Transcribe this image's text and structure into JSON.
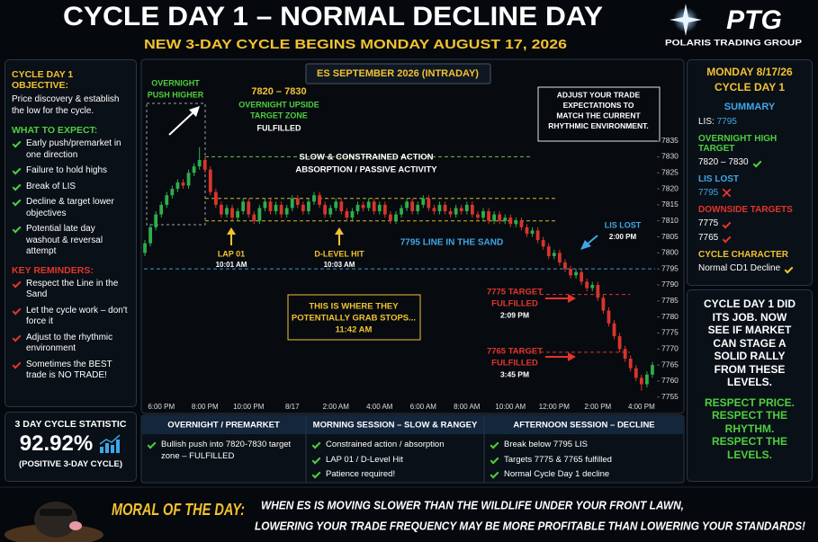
{
  "header": {
    "title": "CYCLE DAY 1 – NORMAL DECLINE DAY",
    "subtitle": "NEW 3-DAY CYCLE BEGINS MONDAY AUGUST 17, 2026",
    "logo": "PTG",
    "logo_sub": "POLARIS TRADING GROUP"
  },
  "left_panel": {
    "objective_heading": "CYCLE DAY 1 OBJECTIVE:",
    "objective_text": "Price discovery & establish the low for the cycle.",
    "expect_heading": "WHAT TO EXPECT:",
    "expect_items": [
      "Early push/premarket in one direction",
      "Failure to hold highs",
      "Break of LIS",
      "Decline & target lower objectives",
      "Potential late day washout & reversal attempt"
    ],
    "reminders_heading": "KEY REMINDERS:",
    "reminder_items": [
      "Respect the Line in the Sand",
      "Let the cycle work – don't force it",
      "Adjust to the rhythmic environment",
      "Sometimes the BEST trade is NO TRADE!"
    ]
  },
  "stat": {
    "heading": "3 DAY CYCLE STATISTIC",
    "value": "92.92%",
    "note": "(POSITIVE 3-DAY CYCLE)"
  },
  "right_panel": {
    "date": "MONDAY 8/17/26",
    "day": "CYCLE DAY 1",
    "summary_heading": "SUMMARY",
    "lis_label": "LIS:",
    "lis_value": 7795,
    "high_target_heading": "OVERNIGHT HIGH TARGET",
    "high_target_value": "7820 – 7830",
    "lis_lost_heading": "LIS LOST",
    "lis_lost_value": 7795,
    "downside_heading": "DOWNSIDE TARGETS",
    "downside_targets": [
      7775,
      7765
    ],
    "character_heading": "CYCLE CHARACTER",
    "character_value": "Normal CD1 Decline"
  },
  "right_box": {
    "lines": [
      "CYCLE DAY 1 DID",
      "ITS JOB. NOW",
      "SEE IF MARKET",
      "CAN STAGE A",
      "SOLID RALLY",
      "FROM THESE",
      "LEVELS."
    ],
    "respect": [
      "RESPECT PRICE.",
      "RESPECT THE",
      "RHYTHM.",
      "RESPECT THE",
      "LEVELS."
    ]
  },
  "sessions": [
    {
      "heading": "OVERNIGHT / PREMARKET",
      "items": [
        "Bullish push into 7820-7830 target zone – FULFILLED"
      ]
    },
    {
      "heading": "MORNING SESSION – SLOW & RANGEY",
      "items": [
        "Constrained action / absorption",
        "LAP 01 / D-Level Hit",
        "Patience required!"
      ]
    },
    {
      "heading": "AFTERNOON SESSION – DECLINE",
      "items": [
        "Break below 7795 LIS",
        "Targets 7775 & 7765 fulfilled",
        "Normal Cycle Day 1 decline"
      ]
    }
  ],
  "moral": {
    "label": "MORAL OF THE DAY:",
    "lines": [
      "WHEN ES IS MOVING SLOWER THAN THE WILDLIFE UNDER YOUR FRONT LAWN,",
      "LOWERING YOUR TRADE FREQUENCY MAY BE MORE PROFITABLE THAN LOWERING YOUR STANDARDS!"
    ]
  },
  "chart_data": {
    "type": "candlestick",
    "title": "ES SEPTEMBER 2026 (INTRADAY)",
    "categories": [
      null,
      null,
      null,
      "6:00 PM",
      null,
      null,
      null,
      null,
      null,
      null,
      null,
      "8:00 PM",
      null,
      null,
      null,
      null,
      null,
      null,
      null,
      "10:00 PM",
      null,
      null,
      null,
      null,
      null,
      null,
      null,
      "8/17",
      null,
      null,
      null,
      null,
      null,
      null,
      null,
      "2:00 AM",
      null,
      null,
      null,
      null,
      null,
      null,
      null,
      "4:00 AM",
      null,
      null,
      null,
      null,
      null,
      null,
      null,
      "6:00 AM",
      null,
      null,
      null,
      null,
      null,
      null,
      null,
      "8:00 AM",
      null,
      null,
      null,
      null,
      null,
      null,
      null,
      "10:00 AM",
      null,
      null,
      null,
      null,
      null,
      null,
      null,
      "12:00 PM",
      null,
      null,
      null,
      null,
      null,
      null,
      null,
      "2:00 PM",
      null,
      null,
      null,
      null,
      null,
      null,
      null,
      "4:00 PM",
      null,
      null
    ],
    "open": [
      7800,
      7803,
      7808,
      7812,
      7815,
      7818,
      7820,
      7822,
      7821,
      7825,
      7827,
      7829,
      7826,
      7819,
      7815,
      7812,
      7814,
      7811,
      7813,
      7816,
      7812,
      7810,
      7814,
      7816,
      7813,
      7815,
      7812,
      7814,
      7817,
      7815,
      7813,
      7816,
      7818,
      7815,
      7812,
      7814,
      7816,
      7813,
      7811,
      7813,
      7815,
      7814,
      7816,
      7813,
      7815,
      7812,
      7810,
      7812,
      7814,
      7816,
      7813,
      7815,
      7817,
      7814,
      7813,
      7815,
      7813,
      7812,
      7814,
      7813,
      7815,
      7812,
      7811,
      7813,
      7810,
      7812,
      7810,
      7811,
      7809,
      7810,
      7808,
      7806,
      7807,
      7804,
      7802,
      7799,
      7800,
      7797,
      7795,
      7793,
      7794,
      7791,
      7789,
      7790,
      7786,
      7782,
      7778,
      7774,
      7770,
      7767,
      7764,
      7761,
      7759,
      7762
    ],
    "high": [
      7804,
      7809,
      7813,
      7816,
      7819,
      7821,
      7823,
      7823,
      7826,
      7828,
      7833,
      7830,
      7827,
      7820,
      7816,
      7815,
      7815,
      7814,
      7817,
      7817,
      7813,
      7815,
      7817,
      7817,
      7816,
      7816,
      7815,
      7818,
      7818,
      7816,
      7817,
      7819,
      7819,
      7816,
      7815,
      7817,
      7817,
      7814,
      7814,
      7816,
      7816,
      7817,
      7817,
      7816,
      7816,
      7813,
      7813,
      7815,
      7817,
      7817,
      7816,
      7818,
      7818,
      7815,
      7816,
      7816,
      7814,
      7815,
      7815,
      7816,
      7816,
      7813,
      7814,
      7814,
      7813,
      7813,
      7812,
      7812,
      7811,
      7811,
      7809,
      7808,
      7808,
      7805,
      7803,
      7801,
      7801,
      7798,
      7796,
      7795,
      7795,
      7792,
      7791,
      7791,
      7787,
      7783,
      7779,
      7775,
      7771,
      7768,
      7765,
      7762,
      7763,
      7766
    ],
    "low": [
      7799,
      7802,
      7807,
      7811,
      7814,
      7817,
      7819,
      7820,
      7820,
      7824,
      7826,
      7825,
      7818,
      7814,
      7811,
      7811,
      7810,
      7810,
      7812,
      7811,
      7809,
      7809,
      7813,
      7812,
      7812,
      7811,
      7811,
      7813,
      7814,
      7812,
      7812,
      7815,
      7814,
      7811,
      7811,
      7813,
      7812,
      7810,
      7810,
      7812,
      7813,
      7813,
      7812,
      7812,
      7811,
      7809,
      7809,
      7811,
      7813,
      7812,
      7812,
      7814,
      7813,
      7812,
      7812,
      7812,
      7811,
      7811,
      7812,
      7812,
      7811,
      7810,
      7810,
      7809,
      7809,
      7809,
      7809,
      7808,
      7808,
      7807,
      7805,
      7805,
      7803,
      7801,
      7798,
      7798,
      7796,
      7794,
      7792,
      7792,
      7790,
      7788,
      7788,
      7785,
      7781,
      7777,
      7773,
      7769,
      7766,
      7763,
      7760,
      7757,
      7758,
      7761
    ],
    "close": [
      7803,
      7808,
      7812,
      7815,
      7818,
      7820,
      7822,
      7821,
      7825,
      7827,
      7829,
      7826,
      7819,
      7815,
      7812,
      7814,
      7811,
      7813,
      7816,
      7812,
      7810,
      7814,
      7816,
      7813,
      7815,
      7812,
      7814,
      7817,
      7815,
      7813,
      7816,
      7818,
      7815,
      7812,
      7814,
      7816,
      7813,
      7811,
      7813,
      7815,
      7814,
      7816,
      7813,
      7815,
      7812,
      7810,
      7812,
      7814,
      7816,
      7813,
      7815,
      7817,
      7814,
      7813,
      7815,
      7813,
      7812,
      7814,
      7813,
      7815,
      7812,
      7811,
      7813,
      7810,
      7812,
      7810,
      7811,
      7809,
      7810,
      7808,
      7806,
      7807,
      7804,
      7802,
      7799,
      7800,
      7797,
      7795,
      7793,
      7794,
      7791,
      7789,
      7790,
      7786,
      7782,
      7778,
      7774,
      7770,
      7767,
      7764,
      7761,
      7759,
      7762,
      7765
    ],
    "up_color": "#2fae4b",
    "down_color": "#d8352c",
    "ylim": [
      7751,
      7852
    ],
    "yticks": [
      7755,
      7760,
      7765,
      7770,
      7775,
      7780,
      7785,
      7790,
      7795,
      7800,
      7805,
      7810,
      7815,
      7820,
      7825,
      7830,
      7835
    ],
    "ref_lines": [
      {
        "value": 7830,
        "color": "#6fc23a"
      },
      {
        "value": 7817,
        "color": "#d9b52a"
      },
      {
        "value": 7810,
        "color": "#d9b52a"
      },
      {
        "value": 7795,
        "color": "#3a9ad9"
      },
      {
        "value": 7787,
        "color": "#d8352c"
      },
      {
        "value": 7769,
        "color": "#d8352c"
      }
    ],
    "annotations": {
      "overnight_push": [
        "OVERNIGHT",
        "PUSH HIGHER"
      ],
      "target_zone": [
        "7820 – 7830"
      ],
      "target_zone_desc": [
        "OVERNIGHT UPSIDE",
        "TARGET ZONE"
      ],
      "target_zone_status": [
        "FULFILLED"
      ],
      "adjust": [
        "ADJUST YOUR TRADE",
        "EXPECTATIONS TO",
        "MATCH THE CURRENT",
        "RHYTHMIC ENVIRONMENT."
      ],
      "slow": [
        "SLOW & CONSTRAINED ACTION",
        "ABSORPTION / PASSIVE ACTIVITY"
      ],
      "lap": [
        "LAP 01",
        "10:01 AM"
      ],
      "dlevel": [
        "D-LEVEL HIT",
        "10:03 AM"
      ],
      "line_in_sand": [
        "7795 LINE IN THE SAND"
      ],
      "lis_lost": [
        "LIS LOST",
        "2:00 PM"
      ],
      "t7775": [
        "7775 TARGET",
        "FULFILLED",
        "2:09 PM"
      ],
      "t7765": [
        "7765 TARGET",
        "FULFILLED",
        "3:45 PM"
      ],
      "stops": [
        "THIS IS WHERE THEY",
        "POTENTIALLY GRAB STOPS...",
        "11:42 AM"
      ]
    }
  }
}
